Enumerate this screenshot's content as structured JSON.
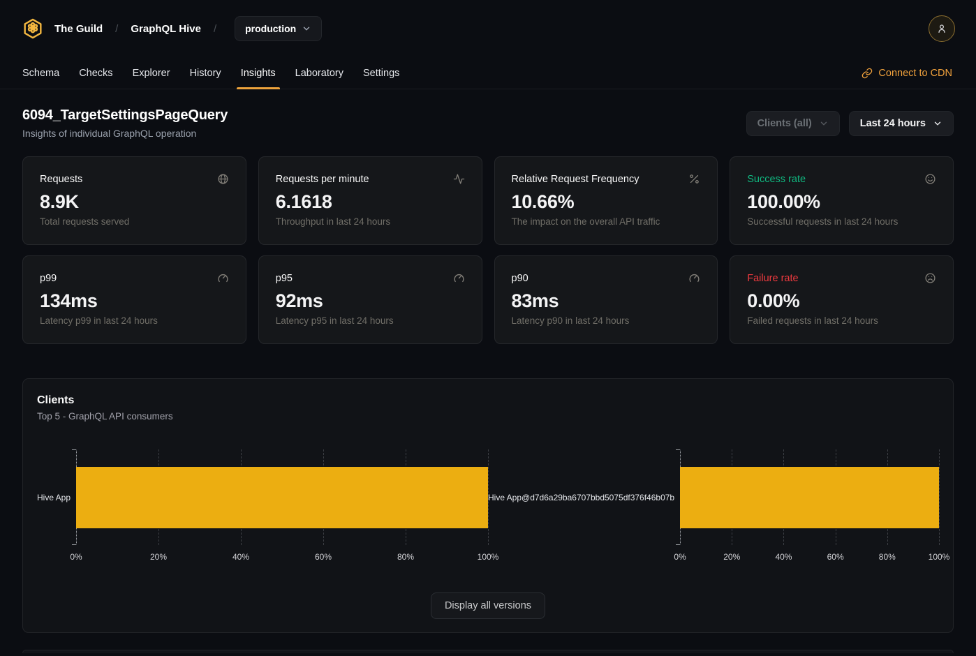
{
  "colors": {
    "accent_amber": "#f4b740",
    "accent_orange": "#f0a13c",
    "success_green": "#10b981",
    "failure_red": "#ef3a3f",
    "bar_yellow": "#ecae11"
  },
  "header": {
    "org": "The Guild",
    "project": "GraphQL Hive",
    "separator": "/",
    "target": "production"
  },
  "nav": {
    "tabs": [
      {
        "label": "Schema",
        "active": false
      },
      {
        "label": "Checks",
        "active": false
      },
      {
        "label": "Explorer",
        "active": false
      },
      {
        "label": "History",
        "active": false
      },
      {
        "label": "Insights",
        "active": true
      },
      {
        "label": "Laboratory",
        "active": false
      },
      {
        "label": "Settings",
        "active": false
      }
    ],
    "cdn_label": "Connect to CDN"
  },
  "page": {
    "title": "6094_TargetSettingsPageQuery",
    "subtitle": "Insights of individual GraphQL operation"
  },
  "filters": {
    "clients": "Clients (all)",
    "period": "Last 24 hours"
  },
  "stats": [
    {
      "title": "Requests",
      "value": "8.9K",
      "description": "Total requests served",
      "icon": "globe-icon"
    },
    {
      "title": "Requests per minute",
      "value": "6.1618",
      "description": "Throughput in last 24 hours",
      "icon": "activity-icon"
    },
    {
      "title": "Relative Request Frequency",
      "value": "10.66%",
      "description": "The impact on the overall API traffic",
      "icon": "percent-icon"
    },
    {
      "title": "Success rate",
      "value": "100.00%",
      "description": "Successful requests in last 24 hours",
      "icon": "smile-icon"
    },
    {
      "title": "p99",
      "value": "134ms",
      "description": "Latency p99 in last 24 hours",
      "icon": "gauge-icon"
    },
    {
      "title": "p95",
      "value": "92ms",
      "description": "Latency p95 in last 24 hours",
      "icon": "gauge-icon"
    },
    {
      "title": "p90",
      "value": "83ms",
      "description": "Latency p90 in last 24 hours",
      "icon": "gauge-icon"
    },
    {
      "title": "Failure rate",
      "value": "0.00%",
      "description": "Failed requests in last 24 hours",
      "icon": "frown-icon"
    }
  ],
  "clients_section": {
    "title": "Clients",
    "subtitle": "Top 5 - GraphQL API consumers",
    "button_label": "Display all versions"
  },
  "chart_data": [
    {
      "type": "bar",
      "orientation": "horizontal",
      "title": "Clients - Top 5 GraphQL API consumers (left)",
      "categories": [
        "Hive App"
      ],
      "values": [
        100
      ],
      "xlabel": "",
      "ylabel": "",
      "xlim": [
        0,
        100
      ],
      "x_ticks": [
        "0%",
        "20%",
        "40%",
        "60%",
        "80%",
        "100%"
      ],
      "bar_color": "#ecae11",
      "grid": "dashed-vertical",
      "legend": "none"
    },
    {
      "type": "bar",
      "orientation": "horizontal",
      "title": "Clients - Top 5 GraphQL API consumers (right)",
      "categories": [
        "Hive App@d7d6a29ba6707bbd5075df376f46b07b"
      ],
      "values": [
        100
      ],
      "xlabel": "",
      "ylabel": "",
      "xlim": [
        0,
        100
      ],
      "x_ticks": [
        "0%",
        "20%",
        "40%",
        "60%",
        "80%",
        "100%"
      ],
      "bar_color": "#ecae11",
      "grid": "dashed-vertical",
      "legend": "none"
    }
  ]
}
